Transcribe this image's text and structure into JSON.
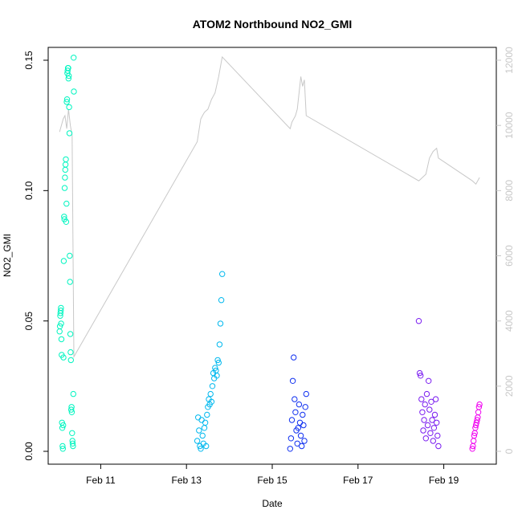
{
  "chart_data": {
    "type": "scatter",
    "title": "ATOM2 Northbound NO2_GMI",
    "xlabel": "Date",
    "ylabel": "NO2_GMI",
    "secondary_ylabel": "",
    "xlim": [
      "2016-02-10 00:00",
      "2016-02-20 00:00"
    ],
    "ylim": [
      0,
      0.15
    ],
    "secondary_ylim": [
      0,
      12000
    ],
    "x_ticks": [
      {
        "date": "2016-02-11 00:00",
        "label": "Feb 11"
      },
      {
        "date": "2016-02-13 00:00",
        "label": "Feb 13"
      },
      {
        "date": "2016-02-15 00:00",
        "label": "Feb 15"
      },
      {
        "date": "2016-02-17 00:00",
        "label": "Feb 17"
      },
      {
        "date": "2016-02-19 00:00",
        "label": "Feb 19"
      }
    ],
    "y_ticks": [
      {
        "value": 0.0,
        "label": "0.00"
      },
      {
        "value": 0.05,
        "label": "0.05"
      },
      {
        "value": 0.1,
        "label": "0.10"
      },
      {
        "value": 0.15,
        "label": "0.15"
      }
    ],
    "secondary_y_ticks": [
      {
        "value": 0,
        "label": "0"
      },
      {
        "value": 2000,
        "label": "2000"
      },
      {
        "value": 4000,
        "label": "4000"
      },
      {
        "value": 6000,
        "label": "6000"
      },
      {
        "value": 8000,
        "label": "8000"
      },
      {
        "value": 10000,
        "label": "10000"
      },
      {
        "value": 12000,
        "label": "12000"
      }
    ],
    "grid": false,
    "legend": "none",
    "colors": {
      "altitude_line": "#c8c8c8",
      "flight_1": "#00f5c0",
      "flight_2": "#00b8ee",
      "flight_3": "#1030f0",
      "flight_4": "#7a1cf0",
      "flight_5": "#f000f0"
    },
    "series": [
      {
        "color": "#00f5c0",
        "start": "2016-02-10 01:00",
        "end": "2016-02-10 09:00",
        "x": [
          "2016-02-10 01:00",
          "2016-02-10 01:10",
          "2016-02-10 01:20",
          "2016-02-10 01:30",
          "2016-02-10 01:40",
          "2016-02-10 01:45",
          "2016-02-10 01:50",
          "2016-02-10 02:00",
          "2016-02-10 02:10",
          "2016-02-10 02:20",
          "2016-02-10 02:30",
          "2016-02-10 02:40",
          "2016-02-10 02:50",
          "2016-02-10 03:00",
          "2016-02-10 03:10",
          "2016-02-10 03:20",
          "2016-02-10 03:30",
          "2016-02-10 03:40",
          "2016-02-10 03:50",
          "2016-02-10 04:00",
          "2016-02-10 04:10",
          "2016-02-10 04:20",
          "2016-02-10 04:30",
          "2016-02-10 04:40",
          "2016-02-10 04:50",
          "2016-02-10 05:00",
          "2016-02-10 05:10",
          "2016-02-10 05:20",
          "2016-02-10 05:30",
          "2016-02-10 05:40",
          "2016-02-10 05:50",
          "2016-02-10 06:00",
          "2016-02-10 06:10",
          "2016-02-10 06:20",
          "2016-02-10 06:30",
          "2016-02-10 06:40",
          "2016-02-10 06:50",
          "2016-02-10 07:00",
          "2016-02-10 07:10",
          "2016-02-10 07:20",
          "2016-02-10 07:30",
          "2016-02-10 07:40",
          "2016-02-10 07:50",
          "2016-02-10 08:00",
          "2016-02-10 08:10",
          "2016-02-10 08:20",
          "2016-02-10 08:30",
          "2016-02-10 08:40",
          "2016-02-10 08:50",
          "2016-02-10 09:00"
        ],
        "y": [
          0.046,
          0.048,
          0.052,
          0.053,
          0.054,
          0.055,
          0.049,
          0.043,
          0.037,
          0.011,
          0.009,
          0.002,
          0.001,
          0.01,
          0.036,
          0.073,
          0.09,
          0.089,
          0.101,
          0.105,
          0.108,
          0.11,
          0.112,
          0.088,
          0.095,
          0.134,
          0.135,
          0.145,
          0.146,
          0.147,
          0.147,
          0.143,
          0.144,
          0.132,
          0.122,
          0.075,
          0.065,
          0.045,
          0.038,
          0.035,
          0.016,
          0.017,
          0.015,
          0.007,
          0.004,
          0.003,
          0.002,
          0.022,
          0.151,
          0.138
        ]
      },
      {
        "color": "#00b8ee",
        "start": "2016-02-13 06:00",
        "end": "2016-02-13 20:00",
        "x": [
          "2016-02-13 06:00",
          "2016-02-13 06:30",
          "2016-02-13 07:00",
          "2016-02-13 07:30",
          "2016-02-13 08:00",
          "2016-02-13 08:30",
          "2016-02-13 09:00",
          "2016-02-13 09:30",
          "2016-02-13 10:00",
          "2016-02-13 10:30",
          "2016-02-13 11:00",
          "2016-02-13 11:30",
          "2016-02-13 12:00",
          "2016-02-13 12:30",
          "2016-02-13 13:00",
          "2016-02-13 13:30",
          "2016-02-13 14:00",
          "2016-02-13 14:30",
          "2016-02-13 15:00",
          "2016-02-13 15:30",
          "2016-02-13 16:00",
          "2016-02-13 16:30",
          "2016-02-13 17:00",
          "2016-02-13 17:30",
          "2016-02-13 18:00",
          "2016-02-13 18:30",
          "2016-02-13 19:00",
          "2016-02-13 19:30",
          "2016-02-13 20:00"
        ],
        "y": [
          0.004,
          0.013,
          0.008,
          0.002,
          0.001,
          0.012,
          0.006,
          0.003,
          0.009,
          0.011,
          0.002,
          0.014,
          0.017,
          0.02,
          0.018,
          0.022,
          0.019,
          0.025,
          0.03,
          0.028,
          0.032,
          0.031,
          0.029,
          0.035,
          0.034,
          0.041,
          0.049,
          0.058,
          0.068
        ]
      },
      {
        "color": "#1030f0",
        "start": "2016-02-15 10:00",
        "end": "2016-02-15 19:00",
        "x": [
          "2016-02-15 10:00",
          "2016-02-15 10:30",
          "2016-02-15 11:00",
          "2016-02-15 11:30",
          "2016-02-15 12:00",
          "2016-02-15 12:30",
          "2016-02-15 13:00",
          "2016-02-15 13:30",
          "2016-02-15 14:00",
          "2016-02-15 14:30",
          "2016-02-15 15:00",
          "2016-02-15 15:30",
          "2016-02-15 16:00",
          "2016-02-15 16:30",
          "2016-02-15 17:00",
          "2016-02-15 17:30",
          "2016-02-15 18:00",
          "2016-02-15 18:30",
          "2016-02-15 19:00"
        ],
        "y": [
          0.001,
          0.005,
          0.012,
          0.027,
          0.036,
          0.02,
          0.015,
          0.008,
          0.003,
          0.009,
          0.018,
          0.011,
          0.006,
          0.002,
          0.014,
          0.01,
          0.004,
          0.017,
          0.022
        ]
      },
      {
        "color": "#7a1cf0",
        "start": "2016-02-18 10:00",
        "end": "2016-02-18 21:00",
        "x": [
          "2016-02-18 10:00",
          "2016-02-18 10:30",
          "2016-02-18 11:00",
          "2016-02-18 11:30",
          "2016-02-18 12:00",
          "2016-02-18 12:30",
          "2016-02-18 13:00",
          "2016-02-18 13:30",
          "2016-02-18 14:00",
          "2016-02-18 14:30",
          "2016-02-18 15:00",
          "2016-02-18 15:30",
          "2016-02-18 16:00",
          "2016-02-18 16:30",
          "2016-02-18 17:00",
          "2016-02-18 17:30",
          "2016-02-18 18:00",
          "2016-02-18 18:30",
          "2016-02-18 19:00",
          "2016-02-18 19:30",
          "2016-02-18 20:00",
          "2016-02-18 20:30",
          "2016-02-18 21:00"
        ],
        "y": [
          0.05,
          0.03,
          0.029,
          0.02,
          0.015,
          0.008,
          0.012,
          0.018,
          0.005,
          0.022,
          0.01,
          0.027,
          0.016,
          0.007,
          0.019,
          0.012,
          0.004,
          0.009,
          0.014,
          0.02,
          0.011,
          0.006,
          0.002
        ]
      },
      {
        "color": "#f000f0",
        "start": "2016-02-19 16:00",
        "end": "2016-02-19 20:00",
        "x": [
          "2016-02-19 16:00",
          "2016-02-19 16:20",
          "2016-02-19 16:40",
          "2016-02-19 17:00",
          "2016-02-19 17:20",
          "2016-02-19 17:40",
          "2016-02-19 18:00",
          "2016-02-19 18:20",
          "2016-02-19 18:40",
          "2016-02-19 19:00",
          "2016-02-19 19:20",
          "2016-02-19 19:40",
          "2016-02-19 20:00"
        ],
        "y": [
          0.001,
          0.002,
          0.004,
          0.006,
          0.007,
          0.009,
          0.01,
          0.011,
          0.012,
          0.013,
          0.015,
          0.017,
          0.018
        ]
      }
    ],
    "altitude": {
      "color": "#c8c8c8",
      "x": [
        "2016-02-10 01:00",
        "2016-02-10 03:00",
        "2016-02-10 04:00",
        "2016-02-10 05:00",
        "2016-02-10 06:00",
        "2016-02-10 07:00",
        "2016-02-10 08:00",
        "2016-02-10 09:00",
        "2016-02-13 06:00",
        "2016-02-13 08:00",
        "2016-02-13 09:00",
        "2016-02-13 10:00",
        "2016-02-13 12:00",
        "2016-02-13 14:00",
        "2016-02-13 16:00",
        "2016-02-13 18:00",
        "2016-02-13 20:00",
        "2016-02-15 10:00",
        "2016-02-15 11:00",
        "2016-02-15 12:00",
        "2016-02-15 13:00",
        "2016-02-15 14:00",
        "2016-02-15 15:00",
        "2016-02-15 16:00",
        "2016-02-15 17:00",
        "2016-02-15 18:00",
        "2016-02-15 19:00",
        "2016-02-18 10:00",
        "2016-02-18 12:00",
        "2016-02-18 14:00",
        "2016-02-18 16:00",
        "2016-02-18 18:00",
        "2016-02-18 20:00",
        "2016-02-18 21:00",
        "2016-02-19 16:00",
        "2016-02-19 18:00",
        "2016-02-19 20:00"
      ],
      "y": [
        9800,
        10200,
        10300,
        9900,
        10500,
        10000,
        9700,
        2900,
        9500,
        10200,
        10300,
        10400,
        10500,
        10800,
        11000,
        11500,
        12100,
        9900,
        10100,
        10200,
        10300,
        10500,
        11000,
        11500,
        11200,
        11400,
        10300,
        8300,
        8400,
        8500,
        9000,
        9200,
        9300,
        9000,
        8300,
        8200,
        8400
      ]
    }
  }
}
